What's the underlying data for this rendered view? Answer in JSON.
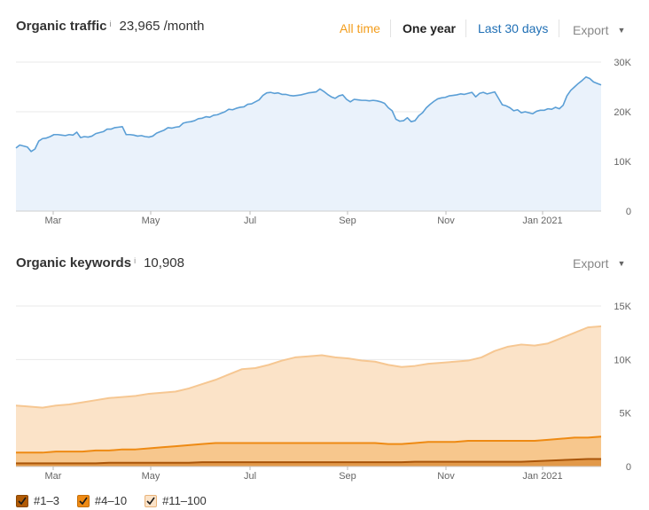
{
  "traffic": {
    "title": "Organic traffic",
    "info": "i",
    "value": "23,965 /month",
    "ranges": {
      "all_time": "All time",
      "one_year": "One year",
      "last_30": "Last 30 days"
    },
    "export": "Export"
  },
  "keywords": {
    "title": "Organic keywords",
    "info": "i",
    "value": "10,908",
    "export": "Export"
  },
  "legend": [
    {
      "label": "#1–3",
      "color": "#b05a05"
    },
    {
      "label": "#4–10",
      "color": "#ee8a13"
    },
    {
      "label": "#11–100",
      "color": "#fbe3c8"
    }
  ],
  "colors": {
    "accent_orange": "#f39d1c",
    "link_blue": "#1f6fb5",
    "traffic_line": "#5b9fd6",
    "traffic_fill": "#eaf2fb"
  },
  "chart_data": [
    {
      "type": "area",
      "x_ticks": [
        "Mar",
        "May",
        "Jul",
        "Sep",
        "Nov",
        "Jan 2021"
      ],
      "y_ticks": [
        "30K",
        "20K",
        "10K",
        "0"
      ],
      "ylim": [
        0,
        30000
      ],
      "grid": true,
      "series": [
        {
          "values": [
            12700,
            13300,
            13100,
            12900,
            12000,
            12500,
            14100,
            14600,
            14700,
            15000,
            15400,
            15400,
            15300,
            15200,
            15400,
            15300,
            15900,
            14800,
            15000,
            14900,
            15100,
            15600,
            15800,
            16000,
            16500,
            16500,
            16800,
            16900,
            17000,
            15400,
            15400,
            15300,
            15100,
            15200,
            15000,
            14900,
            15100,
            15700,
            16000,
            16300,
            16800,
            16700,
            16900,
            17000,
            17700,
            17900,
            18000,
            18200,
            18600,
            18700,
            19000,
            18900,
            19300,
            19400,
            19700,
            20000,
            20500,
            20400,
            20700,
            20900,
            21000,
            21500,
            21600,
            22000,
            22400,
            23300,
            23800,
            23900,
            23700,
            23800,
            23500,
            23500,
            23300,
            23200,
            23300,
            23400,
            23600,
            23800,
            23900,
            24000,
            24600,
            24100,
            23500,
            23000,
            22700,
            23200,
            23400,
            22500,
            22000,
            22500,
            22400,
            22300,
            22300,
            22200,
            22300,
            22200,
            22000,
            21700,
            20800,
            20200,
            18500,
            18100,
            18200,
            18800,
            18000,
            18200,
            19200,
            19800,
            20800,
            21500,
            22100,
            22600,
            22800,
            22900,
            23200,
            23300,
            23400,
            23600,
            23500,
            23700,
            23900,
            23000,
            23700,
            23900,
            23600,
            23800,
            24000,
            22700,
            21400,
            21200,
            20800,
            20200,
            20400,
            19800,
            20000,
            19800,
            19600,
            20100,
            20300,
            20300,
            20600,
            20500,
            20900,
            20600,
            21300,
            23200,
            24300,
            25000,
            25700,
            26300,
            27000,
            26700,
            26000,
            25700,
            25400
          ],
          "color": "#5b9fd6"
        }
      ]
    },
    {
      "type": "area",
      "x_ticks": [
        "Mar",
        "May",
        "Jul",
        "Sep",
        "Nov",
        "Jan 2021"
      ],
      "y_ticks": [
        "15K",
        "10K",
        "5K",
        "0"
      ],
      "ylim": [
        0,
        15000
      ],
      "grid": true,
      "series": [
        {
          "name": "#11–100",
          "values": [
            5700,
            5600,
            5500,
            5700,
            5800,
            6000,
            6200,
            6400,
            6500,
            6600,
            6800,
            6900,
            7000,
            7300,
            7700,
            8100,
            8600,
            9100,
            9200,
            9500,
            9900,
            10200,
            10300,
            10400,
            10200,
            10100,
            9900,
            9800,
            9500,
            9300,
            9400,
            9600,
            9700,
            9800,
            9900,
            10200,
            10800,
            11200,
            11400,
            11300,
            11500,
            12000,
            12500,
            13000,
            13100
          ],
          "color": "#fbe3c8"
        },
        {
          "name": "#4–10",
          "values": [
            1300,
            1300,
            1300,
            1400,
            1400,
            1400,
            1500,
            1500,
            1600,
            1600,
            1700,
            1800,
            1900,
            2000,
            2100,
            2200,
            2200,
            2200,
            2200,
            2200,
            2200,
            2200,
            2200,
            2200,
            2200,
            2200,
            2200,
            2200,
            2100,
            2100,
            2200,
            2300,
            2300,
            2300,
            2400,
            2400,
            2400,
            2400,
            2400,
            2400,
            2500,
            2600,
            2700,
            2700,
            2800
          ],
          "color": "#ee8a13"
        },
        {
          "name": "#1–3",
          "values": [
            300,
            300,
            300,
            300,
            300,
            300,
            300,
            350,
            350,
            350,
            350,
            350,
            350,
            350,
            400,
            400,
            400,
            400,
            400,
            400,
            400,
            400,
            400,
            400,
            400,
            400,
            400,
            400,
            400,
            400,
            450,
            450,
            450,
            450,
            450,
            450,
            450,
            450,
            450,
            500,
            550,
            600,
            650,
            700,
            700
          ],
          "color": "#b05a05"
        }
      ]
    }
  ]
}
